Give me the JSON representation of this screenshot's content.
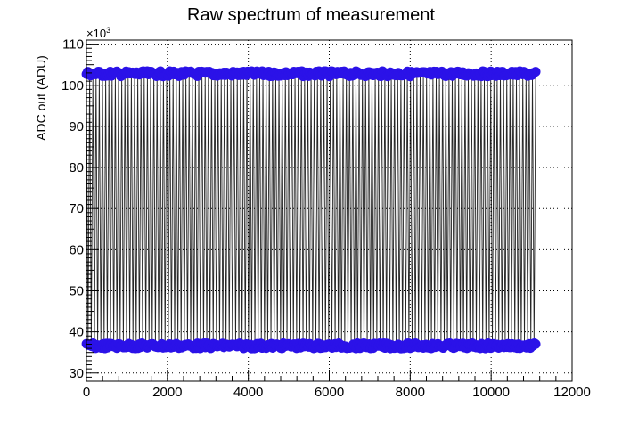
{
  "chart_data": {
    "type": "scatter",
    "title": "Raw spectrum of measurement",
    "xlabel": "",
    "ylabel": "ADC out (ADU)",
    "y_multiplier": {
      "base": "×10",
      "exponent": "3"
    },
    "xlim": [
      0,
      12000
    ],
    "ylim": [
      28,
      111
    ],
    "grid": true,
    "x_ticks": [
      "0",
      "2000",
      "4000",
      "6000",
      "8000",
      "10000",
      "12000"
    ],
    "y_ticks": [
      "30",
      "40",
      "50",
      "60",
      "70",
      "80",
      "90",
      "100",
      "110"
    ],
    "marker_color": "#2b12e8",
    "line_color": "#000000",
    "series": [
      {
        "level_high": 102.8,
        "level_low": 36.6,
        "x_start": 0,
        "x_end": 11100
      }
    ]
  }
}
